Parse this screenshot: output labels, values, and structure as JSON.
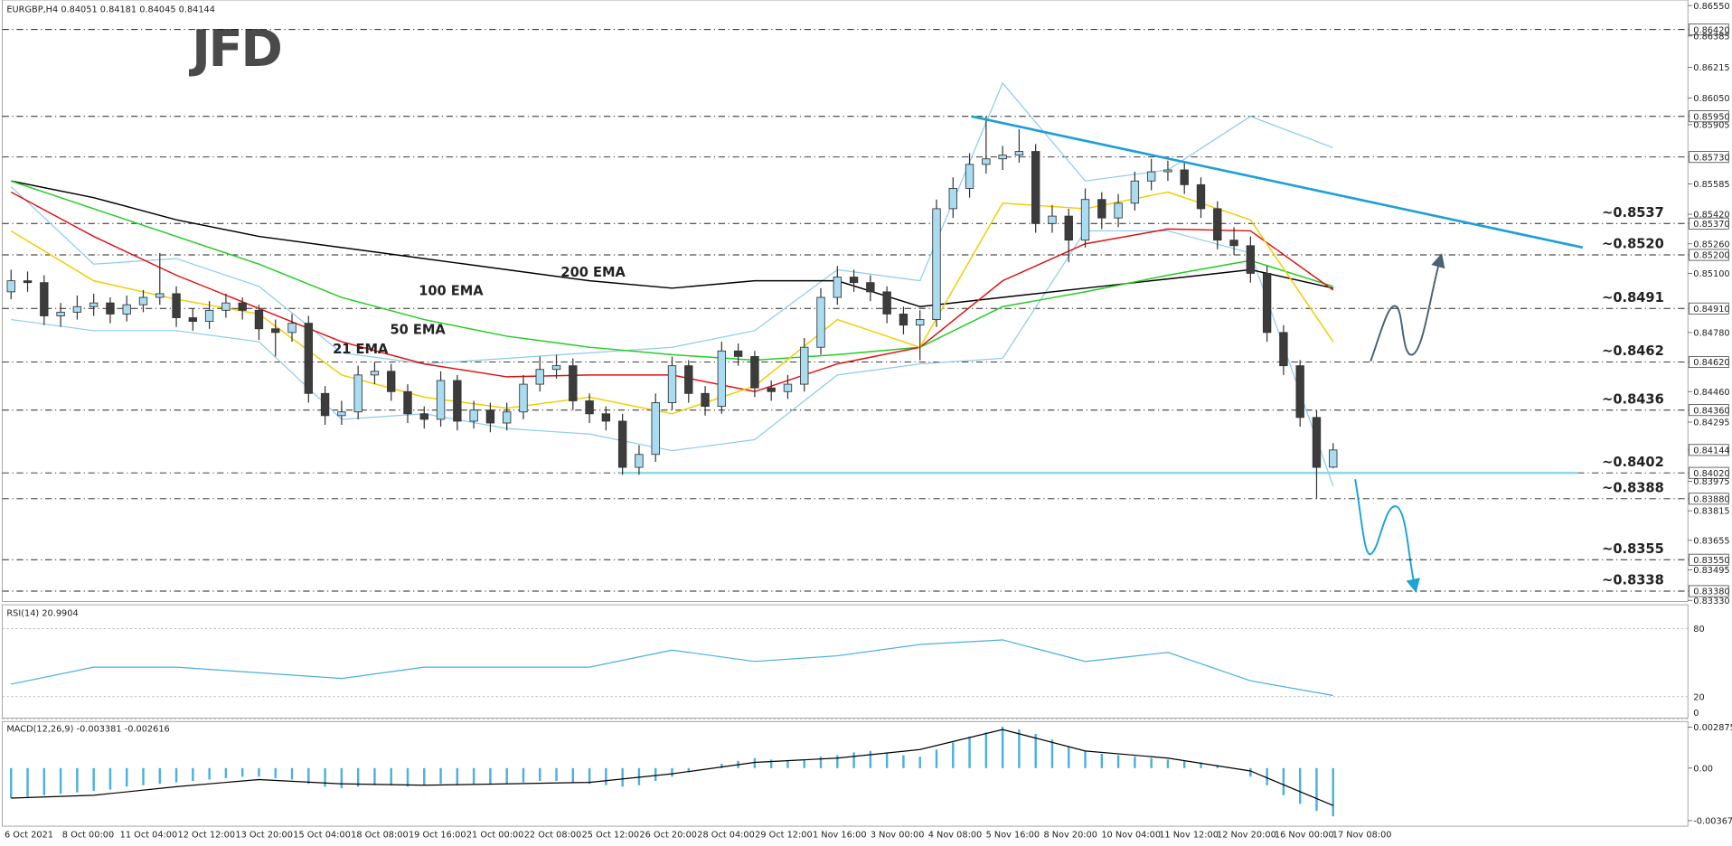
{
  "chart_data": {
    "type": "candlestick",
    "symbol": "EURGBP,H4",
    "logo": "JFD",
    "bull_color": "#a9dcf0",
    "bear_color": "#3c3c3c",
    "candles": [
      [
        0.85,
        0.8512,
        0.8496,
        0.8506
      ],
      [
        0.8506,
        0.8511,
        0.85,
        0.8505
      ],
      [
        0.8505,
        0.8509,
        0.8482,
        0.8487
      ],
      [
        0.8487,
        0.8494,
        0.8481,
        0.8489
      ],
      [
        0.8489,
        0.8498,
        0.8485,
        0.8492
      ],
      [
        0.8492,
        0.8499,
        0.8487,
        0.8494
      ],
      [
        0.8494,
        0.8497,
        0.8483,
        0.8488
      ],
      [
        0.8488,
        0.8498,
        0.8484,
        0.8493
      ],
      [
        0.8493,
        0.8501,
        0.8489,
        0.8497
      ],
      [
        0.8497,
        0.8521,
        0.8493,
        0.8499
      ],
      [
        0.8499,
        0.8503,
        0.8481,
        0.8486
      ],
      [
        0.8486,
        0.8491,
        0.8479,
        0.8484
      ],
      [
        0.8484,
        0.8495,
        0.848,
        0.849
      ],
      [
        0.849,
        0.8499,
        0.8486,
        0.8494
      ],
      [
        0.8494,
        0.8497,
        0.8485,
        0.849
      ],
      [
        0.849,
        0.8493,
        0.8474,
        0.848
      ],
      [
        0.848,
        0.8485,
        0.8465,
        0.8478
      ],
      [
        0.8478,
        0.8488,
        0.8473,
        0.8483
      ],
      [
        0.8483,
        0.8487,
        0.844,
        0.8445
      ],
      [
        0.8445,
        0.8449,
        0.8428,
        0.8433
      ],
      [
        0.8433,
        0.8441,
        0.8428,
        0.8435
      ],
      [
        0.8435,
        0.846,
        0.8431,
        0.8455
      ],
      [
        0.8455,
        0.8462,
        0.845,
        0.8457
      ],
      [
        0.8457,
        0.8461,
        0.8441,
        0.8446
      ],
      [
        0.8446,
        0.845,
        0.8429,
        0.8434
      ],
      [
        0.8434,
        0.8438,
        0.8426,
        0.8431
      ],
      [
        0.8431,
        0.8457,
        0.8427,
        0.8452
      ],
      [
        0.8452,
        0.8455,
        0.8425,
        0.843
      ],
      [
        0.843,
        0.8441,
        0.8426,
        0.8436
      ],
      [
        0.8436,
        0.844,
        0.8424,
        0.8429
      ],
      [
        0.8429,
        0.844,
        0.8425,
        0.8435
      ],
      [
        0.8435,
        0.8455,
        0.8431,
        0.845
      ],
      [
        0.845,
        0.8465,
        0.8446,
        0.8458
      ],
      [
        0.8458,
        0.8466,
        0.8453,
        0.846
      ],
      [
        0.846,
        0.8464,
        0.8436,
        0.8441
      ],
      [
        0.8441,
        0.8445,
        0.8429,
        0.8434
      ],
      [
        0.8434,
        0.8438,
        0.8425,
        0.843
      ],
      [
        0.843,
        0.8434,
        0.8401,
        0.8405
      ],
      [
        0.8405,
        0.8417,
        0.8401,
        0.8412
      ],
      [
        0.8412,
        0.8445,
        0.8408,
        0.844
      ],
      [
        0.844,
        0.8465,
        0.8436,
        0.846
      ],
      [
        0.846,
        0.8463,
        0.844,
        0.8445
      ],
      [
        0.8445,
        0.8449,
        0.8433,
        0.8438
      ],
      [
        0.8438,
        0.8473,
        0.8434,
        0.8468
      ],
      [
        0.8468,
        0.8472,
        0.846,
        0.8465
      ],
      [
        0.8465,
        0.8468,
        0.8443,
        0.8448
      ],
      [
        0.8448,
        0.8452,
        0.8441,
        0.8446
      ],
      [
        0.8446,
        0.8455,
        0.8442,
        0.845
      ],
      [
        0.845,
        0.8475,
        0.8446,
        0.847
      ],
      [
        0.847,
        0.8502,
        0.8466,
        0.8497
      ],
      [
        0.8497,
        0.8514,
        0.8493,
        0.8508
      ],
      [
        0.8508,
        0.8512,
        0.85,
        0.8505
      ],
      [
        0.8505,
        0.8509,
        0.8495,
        0.85
      ],
      [
        0.85,
        0.8503,
        0.8483,
        0.8488
      ],
      [
        0.8488,
        0.8492,
        0.8477,
        0.8482
      ],
      [
        0.8482,
        0.849,
        0.8463,
        0.8485
      ],
      [
        0.8485,
        0.855,
        0.8481,
        0.8545
      ],
      [
        0.8545,
        0.8562,
        0.854,
        0.8556
      ],
      [
        0.8556,
        0.8575,
        0.8551,
        0.8569
      ],
      [
        0.8569,
        0.8595,
        0.8564,
        0.8572
      ],
      [
        0.8572,
        0.8579,
        0.8566,
        0.8574
      ],
      [
        0.8574,
        0.8588,
        0.857,
        0.8576
      ],
      [
        0.8576,
        0.858,
        0.8532,
        0.8537
      ],
      [
        0.8537,
        0.8547,
        0.8532,
        0.8541
      ],
      [
        0.8541,
        0.8545,
        0.8516,
        0.8528
      ],
      [
        0.8528,
        0.8556,
        0.8524,
        0.855
      ],
      [
        0.855,
        0.8554,
        0.8534,
        0.854
      ],
      [
        0.854,
        0.8553,
        0.8535,
        0.8548
      ],
      [
        0.8548,
        0.8565,
        0.8544,
        0.856
      ],
      [
        0.856,
        0.8572,
        0.8555,
        0.8565
      ],
      [
        0.8565,
        0.8571,
        0.856,
        0.8566
      ],
      [
        0.8566,
        0.857,
        0.8553,
        0.8558
      ],
      [
        0.8558,
        0.8562,
        0.854,
        0.8545
      ],
      [
        0.8545,
        0.8549,
        0.8523,
        0.8528
      ],
      [
        0.8528,
        0.8535,
        0.852,
        0.8525
      ],
      [
        0.8525,
        0.853,
        0.8505,
        0.851
      ],
      [
        0.851,
        0.8514,
        0.8473,
        0.8478
      ],
      [
        0.8478,
        0.8482,
        0.8455,
        0.846
      ],
      [
        0.846,
        0.8463,
        0.8427,
        0.8432
      ],
      [
        0.8432,
        0.8436,
        0.8388,
        0.8405
      ],
      [
        0.84051,
        0.84181,
        0.84045,
        0.84144
      ]
    ],
    "ylim": [
      0.8333,
      0.8655
    ],
    "yticks": [
      {
        "value": 0.8655,
        "label": "0.86550"
      },
      {
        "value": 0.8642,
        "label": "0.86420"
      },
      0.86385,
      0.86215,
      {
        "value": 0.8605,
        "label": "0.86050"
      },
      {
        "value": 0.8595,
        "label": "0.85950"
      },
      0.85905,
      {
        "value": 0.8573,
        "label": "0.85730"
      },
      0.85585,
      {
        "value": 0.8542,
        "label": "0.85420"
      },
      {
        "value": 0.8537,
        "label": "0.85370"
      },
      {
        "value": 0.8526,
        "label": "0.85260"
      },
      {
        "value": 0.852,
        "label": "0.85200"
      },
      {
        "value": 0.851,
        "label": "0.85100"
      },
      {
        "value": 0.8491,
        "label": "0.84910"
      },
      {
        "value": 0.8478,
        "label": "0.84780"
      },
      {
        "value": 0.8462,
        "label": "0.84620"
      },
      {
        "value": 0.8446,
        "label": "0.84460"
      },
      {
        "value": 0.8436,
        "label": "0.84360"
      },
      0.84295,
      0.84144,
      {
        "value": 0.8402,
        "label": "0.84020"
      },
      0.83975,
      {
        "value": 0.8388,
        "label": "0.83880"
      },
      0.83815,
      0.83655,
      {
        "value": 0.8355,
        "label": "0.83550"
      },
      0.83495,
      {
        "value": 0.8338,
        "label": "0.83380"
      },
      {
        "value": 0.8333,
        "label": "0.83330"
      }
    ],
    "x_labels": [
      "6 Oct 2021",
      "8 Oct 00:00",
      "11 Oct 04:00",
      "12 Oct 12:00",
      "13 Oct 20:00",
      "15 Oct 04:00",
      "18 Oct 08:00",
      "19 Oct 16:00",
      "21 Oct 00:00",
      "22 Oct 08:00",
      "25 Oct 12:00",
      "26 Oct 20:00",
      "28 Oct 04:00",
      "29 Oct 12:00",
      "1 Nov 16:00",
      "3 Nov 00:00",
      "4 Nov 08:00",
      "5 Nov 16:00",
      "8 Nov 20:00",
      "10 Nov 04:00",
      "11 Nov 12:00",
      "12 Nov 20:00",
      "16 Nov 00:00",
      "17 Nov 08:00"
    ],
    "levels": [
      0.8642,
      0.8595,
      0.8573,
      {
        "value": 0.8537,
        "label": "~0.8537",
        "color": "#4a4a4a"
      },
      {
        "value": 0.852,
        "label": "~0.8520",
        "color": "#4a4a4a"
      },
      {
        "value": 0.8491,
        "label": "~0.8491",
        "color": "#4a4a4a"
      },
      {
        "value": 0.8462,
        "label": "~0.8462",
        "color": "#4a4a4a"
      },
      {
        "value": 0.8436,
        "label": "~0.8436",
        "color": "#4a4a4a"
      },
      {
        "value": 0.8402,
        "label": "~0.8402",
        "color": "#1ba5d4"
      },
      {
        "value": 0.8388,
        "label": "~0.8388",
        "color": "#1ba5d4"
      },
      {
        "value": 0.8355,
        "label": "~0.8355",
        "color": "#1ba5d4"
      },
      {
        "value": 0.8338,
        "label": "~0.8338",
        "color": "#1ba5d4"
      }
    ],
    "support": {
      "value": 0.8402,
      "from": 36.8,
      "to": 94.8,
      "color": "#8fd8ee"
    },
    "trendline": {
      "color": "#1e9fd6",
      "points": [
        [
          58.1,
          0.8595
        ],
        [
          95.1,
          0.8524
        ]
      ]
    },
    "overlay_x": [
      0,
      5,
      10,
      15,
      20,
      25,
      30,
      35,
      40,
      45,
      50,
      55,
      60,
      65,
      70,
      75,
      80
    ],
    "overlays": [
      {
        "name": "200 EMA",
        "color": "#000000",
        "values": [
          0.856,
          0.8551,
          0.8539,
          0.853,
          0.8524,
          0.8518,
          0.8512,
          0.8506,
          0.8502,
          0.8506,
          0.8506,
          0.8492,
          0.8497,
          0.8502,
          0.8507,
          0.8512,
          0.8502
        ]
      },
      {
        "name": "100 EMA",
        "color": "#22cc22",
        "values": [
          0.856,
          0.8545,
          0.853,
          0.8515,
          0.8497,
          0.8485,
          0.8476,
          0.847,
          0.8466,
          0.8463,
          0.8466,
          0.847,
          0.8492,
          0.85,
          0.8509,
          0.8517,
          0.8503
        ]
      },
      {
        "name": "50 EMA",
        "color": "#e01010",
        "values": [
          0.8554,
          0.853,
          0.8509,
          0.8491,
          0.8473,
          0.8461,
          0.8454,
          0.8455,
          0.8455,
          0.8446,
          0.8461,
          0.847,
          0.8506,
          0.8526,
          0.8534,
          0.8533,
          0.8501
        ]
      },
      {
        "name": "21 EMA",
        "color": "#f2cc00",
        "values": [
          0.8533,
          0.8506,
          0.8496,
          0.8488,
          0.8455,
          0.8443,
          0.8437,
          0.8443,
          0.8434,
          0.8449,
          0.8485,
          0.847,
          0.8548,
          0.8545,
          0.8554,
          0.8539,
          0.8473
        ]
      }
    ],
    "bands": {
      "color": "#8ccbec",
      "upper": [
        0.8557,
        0.8515,
        0.8518,
        0.8503,
        0.8467,
        0.8461,
        0.8464,
        0.8467,
        0.847,
        0.8479,
        0.8512,
        0.8506,
        0.8613,
        0.856,
        0.8566,
        0.8595,
        0.8578
      ],
      "lower": [
        0.8485,
        0.8479,
        0.8479,
        0.8473,
        0.8431,
        0.8434,
        0.8426,
        0.8423,
        0.8414,
        0.842,
        0.8455,
        0.8461,
        0.8464,
        0.8533,
        0.8533,
        0.8521,
        0.8395
      ]
    },
    "rsi": {
      "title": "RSI(14)",
      "color": "#4ab0dc",
      "ylim": [
        0,
        100
      ],
      "yticks": [
        80,
        20,
        0
      ],
      "values": [
        31,
        46,
        46,
        41,
        36,
        46,
        46,
        46,
        61,
        51,
        56,
        66,
        70,
        51,
        59,
        34,
        20.9904
      ]
    },
    "macd": {
      "title": "MACD(12,26,9)",
      "ylim": [
        -0.003679,
        0.002875
      ],
      "yticks": [
        0.002875,
        {
          "value": 0,
          "label": "0.00"
        },
        -0.003679
      ],
      "histogram": {
        "color": "#4ab0dc",
        "values": [
          -0.0021,
          -0.002,
          -0.0019,
          -0.0018,
          -0.0017,
          -0.0016,
          -0.0015,
          -0.0013,
          -0.0012,
          -0.0011,
          -0.001,
          -0.0009,
          -0.0008,
          -0.0007,
          -0.0006,
          -0.0006,
          -0.0007,
          -0.0008,
          -0.0011,
          -0.0013,
          -0.0014,
          -0.0013,
          -0.0012,
          -0.0012,
          -0.0013,
          -0.0012,
          -0.0011,
          -0.0012,
          -0.0011,
          -0.0011,
          -0.0011,
          -0.001,
          -0.0009,
          -0.0009,
          -0.001,
          -0.0011,
          -0.0012,
          -0.0013,
          -0.0012,
          -0.0009,
          -0.0006,
          -0.0003,
          0.0,
          0.0003,
          0.0005,
          0.0007,
          0.0006,
          0.0005,
          0.0006,
          0.0008,
          0.0009,
          0.0011,
          0.0012,
          0.0011,
          0.0009,
          0.0008,
          0.0013,
          0.0018,
          0.0022,
          0.0025,
          0.0029,
          0.0027,
          0.0024,
          0.002,
          0.0015,
          0.0012,
          0.001,
          0.0009,
          0.0008,
          0.0007,
          0.0006,
          0.0005,
          0.0004,
          0.0002,
          0.0,
          -0.0006,
          -0.0012,
          -0.0019,
          -0.0025,
          -0.003,
          -0.003381
        ]
      },
      "signal": {
        "color": "#000000",
        "values": [
          -0.0021,
          -0.0019,
          -0.0013,
          -0.0008,
          -0.0011,
          -0.0012,
          -0.0011,
          -0.001,
          -0.0004,
          0.0004,
          0.0007,
          0.0013,
          0.0027,
          0.0012,
          0.0007,
          -0.0002,
          -0.002616
        ]
      }
    }
  }
}
